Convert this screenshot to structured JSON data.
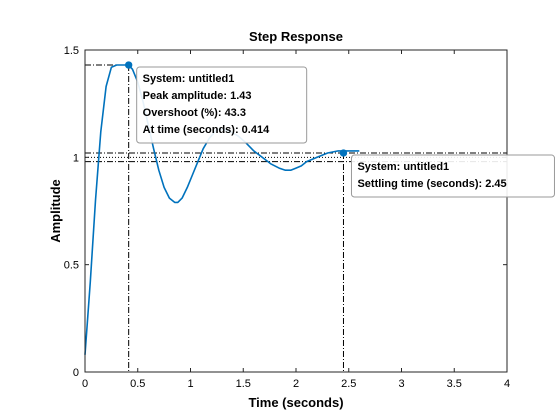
{
  "chart_data": {
    "type": "line",
    "title": "Step Response",
    "xlabel": "Time (seconds)",
    "ylabel": "Amplitude",
    "xlim": [
      0,
      4
    ],
    "ylim": [
      0,
      1.5
    ],
    "xticks": [
      0,
      0.5,
      1,
      1.5,
      2,
      2.5,
      3,
      3.5,
      4
    ],
    "xtick_labels": [
      "0",
      "0.5",
      "1",
      "1.5",
      "2",
      "2.5",
      "3",
      "3.5",
      "4"
    ],
    "yticks": [
      0,
      0.5,
      1,
      1.5
    ],
    "ytick_labels": [
      "0",
      "0.5",
      "1",
      "1.5"
    ],
    "grid": false,
    "series": [
      {
        "color": "#0072BD",
        "x": [
          0,
          0.05,
          0.1,
          0.15,
          0.2,
          0.25,
          0.3,
          0.35,
          0.414,
          0.45,
          0.5,
          0.55,
          0.6,
          0.65,
          0.7,
          0.75,
          0.8,
          0.85,
          0.88,
          0.92,
          0.97,
          1.02,
          1.07,
          1.12,
          1.18,
          1.25,
          1.32,
          1.38,
          1.45,
          1.52,
          1.6,
          1.68,
          1.76,
          1.84,
          1.9,
          1.95,
          2.0,
          2.05,
          2.1,
          2.15,
          2.2,
          2.3,
          2.4,
          2.45,
          2.5,
          2.55,
          2.6
        ],
        "y": [
          0.08,
          0.42,
          0.8,
          1.12,
          1.33,
          1.42,
          1.43,
          1.43,
          1.43,
          1.41,
          1.35,
          1.26,
          1.15,
          1.04,
          0.94,
          0.86,
          0.81,
          0.79,
          0.79,
          0.81,
          0.86,
          0.92,
          0.98,
          1.04,
          1.09,
          1.13,
          1.13,
          1.12,
          1.1,
          1.07,
          1.03,
          1.0,
          0.97,
          0.95,
          0.94,
          0.94,
          0.95,
          0.96,
          0.98,
          0.99,
          1.0,
          1.02,
          1.03,
          1.03,
          1.03,
          1.03,
          1.03
        ]
      }
    ],
    "reference_lines": {
      "final_value": 1.0,
      "settling_band": [
        0.98,
        1.02
      ],
      "line_color": "#000000"
    },
    "datatips": [
      {
        "x": 0.414,
        "y": 1.43,
        "lines": [
          "System: untitled1",
          "Peak amplitude: 1.43",
          "Overshoot (%): 43.3",
          "At time (seconds): 0.414"
        ]
      },
      {
        "x": 2.45,
        "y": 1.02,
        "lines": [
          "System: untitled1",
          "Settling time (seconds): 2.45"
        ]
      }
    ]
  }
}
